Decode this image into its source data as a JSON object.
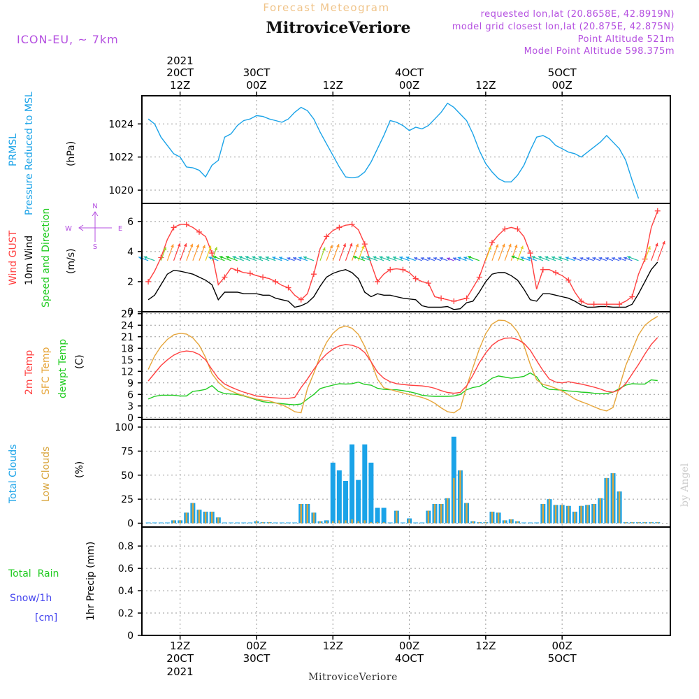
{
  "header": {
    "title_top": "Forecast Meteogram",
    "station": "MitroviceVeriore",
    "model": "ICON-EU, ~ 7km",
    "requested": "requested lon,lat (20.8658E, 42.8919N)",
    "closest": "model grid closest lon,lat (20.875E, 42.875N)",
    "point_alt": "Point Altitude 521m",
    "model_alt": "Model Point Altitude 598.375m",
    "watermark": "by Angel",
    "footer": "MitroviceVeriore"
  },
  "colors": {
    "pressure": "#1aa3e8",
    "gust": "#ff4040",
    "wind": "#000000",
    "temp": "#ff4040",
    "sfc": "#e6a53a",
    "dewpt": "#22cc22",
    "total_clouds": "#1aa3e8",
    "low_clouds": "#d9a640",
    "label_purple": "#b44fe0",
    "rain_green": "#22cc22",
    "snow_blue": "#4444ee"
  },
  "time_axis": {
    "top_year": "2021",
    "top_ticks": [
      {
        "hour": 12,
        "l1": "20CT",
        "l2": "12Z"
      },
      {
        "hour": 24,
        "l1": "30CT",
        "l2": "00Z"
      },
      {
        "hour": 36,
        "l1": "",
        "l2": "12Z"
      },
      {
        "hour": 48,
        "l1": "4OCT",
        "l2": "00Z"
      },
      {
        "hour": 60,
        "l1": "",
        "l2": "12Z"
      },
      {
        "hour": 72,
        "l1": "5OCT",
        "l2": "00Z"
      }
    ],
    "bottom_ticks": [
      {
        "hour": 12,
        "l1": "12Z",
        "l2": "20CT",
        "l3": "2021"
      },
      {
        "hour": 24,
        "l1": "00Z",
        "l2": "30CT",
        "l3": ""
      },
      {
        "hour": 36,
        "l1": "12Z",
        "l2": "",
        "l3": ""
      },
      {
        "hour": 48,
        "l1": "00Z",
        "l2": "4OCT",
        "l3": ""
      },
      {
        "hour": 60,
        "l1": "12Z",
        "l2": "",
        "l3": ""
      },
      {
        "hour": 72,
        "l1": "00Z",
        "l2": "5OCT",
        "l3": ""
      }
    ]
  },
  "panel_labels": {
    "pressure": [
      "PRMSL",
      "Pressure Reduced to MSL"
    ],
    "pressure_unit": "(hPa)",
    "wind": [
      "Wind GUST",
      "10m Wind",
      "Speed and Direction"
    ],
    "wind_unit": "(m/s)",
    "compass": {
      "n": "N",
      "s": "S",
      "w": "W",
      "e": "E"
    },
    "temp": [
      "2m Temp",
      "SFC Temp",
      "dewpt Temp"
    ],
    "temp_unit": "(C)",
    "clouds": [
      "Total Clouds",
      "Low Clouds"
    ],
    "clouds_unit": "(%)",
    "precip": [
      "Total  Rain",
      "Snow/1h",
      "[cm]"
    ],
    "precip_unit": "1hr Precip (mm)"
  },
  "chart_data": [
    {
      "type": "line",
      "panel": "pressure",
      "x_start_hour": 7,
      "x_step_hours": 1,
      "ylim": [
        1019.2,
        1025.7
      ],
      "yticks": [
        "1020",
        "1022",
        "1024"
      ],
      "yticks_values": [
        1020,
        1022,
        1024
      ],
      "series": [
        {
          "name": "PRMSL",
          "values": [
            1024.3,
            1024.0,
            1023.2,
            1022.7,
            1022.2,
            1022.0,
            1021.4,
            1021.35,
            1021.2,
            1020.8,
            1021.5,
            1021.8,
            1023.2,
            1023.4,
            1023.9,
            1024.2,
            1024.3,
            1024.5,
            1024.45,
            1024.3,
            1024.2,
            1024.1,
            1024.3,
            1024.7,
            1025.0,
            1024.8,
            1024.3,
            1023.5,
            1022.8,
            1022.1,
            1021.4,
            1020.8,
            1020.75,
            1020.8,
            1021.1,
            1021.7,
            1022.5,
            1023.3,
            1024.2,
            1024.1,
            1023.9,
            1023.6,
            1023.8,
            1023.7,
            1023.9,
            1024.3,
            1024.7,
            1025.25,
            1025.0,
            1024.6,
            1024.2,
            1023.4,
            1022.4,
            1021.6,
            1021.1,
            1020.7,
            1020.5,
            1020.5,
            1020.9,
            1021.5,
            1022.4,
            1023.2,
            1023.3,
            1023.1,
            1022.7,
            1022.5,
            1022.3,
            1022.2,
            1022.0,
            1022.3,
            1022.6,
            1022.9,
            1023.3,
            1022.9,
            1022.5,
            1021.8,
            1020.6,
            1019.5
          ]
        }
      ]
    },
    {
      "type": "line",
      "panel": "wind",
      "x_start_hour": 7,
      "x_step_hours": 1,
      "ylim": [
        0,
        7.2
      ],
      "yticks": [
        "0",
        "2",
        "4",
        "6"
      ],
      "yticks_values": [
        0,
        2,
        4,
        6
      ],
      "series": [
        {
          "name": "Wind GUST",
          "values": [
            2.0,
            2.7,
            3.6,
            4.8,
            5.6,
            5.8,
            5.8,
            5.6,
            5.3,
            5.0,
            3.9,
            1.8,
            2.3,
            2.9,
            2.75,
            2.6,
            2.55,
            2.4,
            2.3,
            2.2,
            2.0,
            1.75,
            1.6,
            1.1,
            0.8,
            1.2,
            2.5,
            4.2,
            5.0,
            5.4,
            5.6,
            5.75,
            5.8,
            5.45,
            4.5,
            3.2,
            2.0,
            2.5,
            2.8,
            2.85,
            2.8,
            2.6,
            2.2,
            2.0,
            1.9,
            1.0,
            0.9,
            0.8,
            0.7,
            0.8,
            0.9,
            1.6,
            2.3,
            3.5,
            4.6,
            5.1,
            5.5,
            5.6,
            5.5,
            5.0,
            3.9,
            1.5,
            2.8,
            2.8,
            2.6,
            2.4,
            2.1,
            1.3,
            0.7,
            0.5,
            0.5,
            0.5,
            0.5,
            0.5,
            0.5,
            0.7,
            1.0,
            2.5,
            3.5,
            5.6,
            6.7
          ]
        },
        {
          "name": "10m Wind",
          "values": [
            0.8,
            1.1,
            1.8,
            2.5,
            2.75,
            2.7,
            2.6,
            2.5,
            2.3,
            2.1,
            1.8,
            0.8,
            1.3,
            1.3,
            1.3,
            1.2,
            1.2,
            1.2,
            1.1,
            1.1,
            0.9,
            0.8,
            0.7,
            0.3,
            0.4,
            0.6,
            1.0,
            1.7,
            2.3,
            2.55,
            2.7,
            2.8,
            2.6,
            2.2,
            1.3,
            1.0,
            1.2,
            1.1,
            1.1,
            1.0,
            0.9,
            0.85,
            0.8,
            0.4,
            0.3,
            0.3,
            0.3,
            0.35,
            0.15,
            0.2,
            0.6,
            0.7,
            1.3,
            2.0,
            2.5,
            2.6,
            2.6,
            2.4,
            2.1,
            1.5,
            0.8,
            0.7,
            1.2,
            1.2,
            1.1,
            1.0,
            0.9,
            0.7,
            0.45,
            0.3,
            0.3,
            0.35,
            0.35,
            0.3,
            0.3,
            0.3,
            0.5,
            1.2,
            2.0,
            2.8,
            3.3
          ]
        }
      ]
    },
    {
      "type": "line",
      "panel": "temperature",
      "x_start_hour": 7,
      "x_step_hours": 1,
      "ylim": [
        -0.5,
        27.5
      ],
      "yticks": [
        "0",
        "3",
        "6",
        "9",
        "12",
        "15",
        "18",
        "21",
        "24",
        "27"
      ],
      "yticks_values": [
        0,
        3,
        6,
        9,
        12,
        15,
        18,
        21,
        24,
        27
      ],
      "series": [
        {
          "name": "2m Temp",
          "values": [
            9.5,
            11.5,
            13.5,
            15.0,
            16.2,
            17.0,
            17.3,
            17.1,
            16.4,
            15.0,
            12.5,
            10.2,
            8.7,
            7.9,
            7.2,
            6.6,
            6.1,
            5.6,
            5.4,
            5.2,
            5.1,
            5.0,
            5.0,
            5.2,
            7.8,
            10.0,
            12.5,
            14.8,
            16.5,
            17.8,
            18.6,
            19.0,
            18.8,
            18.2,
            16.9,
            14.5,
            11.8,
            10.2,
            9.3,
            8.8,
            8.6,
            8.4,
            8.3,
            8.2,
            8.0,
            7.6,
            7.0,
            6.5,
            6.3,
            6.5,
            8.2,
            11.0,
            14.2,
            16.8,
            18.8,
            20.0,
            20.6,
            20.7,
            20.3,
            19.3,
            17.5,
            14.8,
            12.2,
            10.0,
            9.2,
            9.0,
            9.3,
            9.0,
            8.7,
            8.3,
            7.9,
            7.4,
            6.8,
            6.6,
            7.2,
            8.8,
            11.3,
            13.8,
            16.5,
            19.0,
            20.8
          ]
        },
        {
          "name": "SFC Temp",
          "values": [
            12.5,
            16.0,
            18.5,
            20.3,
            21.5,
            21.9,
            21.7,
            20.7,
            18.8,
            15.6,
            11.4,
            9.2,
            7.7,
            6.9,
            6.2,
            5.7,
            5.2,
            4.8,
            4.5,
            4.3,
            3.8,
            3.3,
            2.5,
            1.5,
            1.2,
            7.5,
            11.5,
            16.0,
            19.5,
            21.9,
            23.3,
            23.8,
            23.2,
            21.6,
            18.5,
            14.5,
            10.0,
            7.7,
            7.3,
            6.8,
            6.4,
            6.0,
            5.6,
            5.2,
            4.6,
            3.7,
            2.5,
            1.5,
            1.2,
            2.3,
            8.0,
            13.0,
            17.8,
            21.8,
            24.3,
            25.3,
            25.2,
            24.3,
            22.3,
            18.8,
            13.8,
            9.8,
            8.6,
            8.2,
            7.6,
            6.9,
            5.9,
            4.8,
            4.1,
            3.5,
            2.8,
            2.1,
            1.7,
            2.6,
            8.0,
            13.5,
            17.5,
            21.5,
            24.0,
            25.3,
            26.3
          ]
        },
        {
          "name": "dewpt Temp",
          "values": [
            4.8,
            5.5,
            5.8,
            5.8,
            5.8,
            5.6,
            5.6,
            6.8,
            7.0,
            7.3,
            8.3,
            6.8,
            6.2,
            6.1,
            6.0,
            5.6,
            5.1,
            4.6,
            4.1,
            3.9,
            3.8,
            3.6,
            3.4,
            3.3,
            3.5,
            4.8,
            6.0,
            7.5,
            8.0,
            8.4,
            8.8,
            8.7,
            8.8,
            9.2,
            8.6,
            8.4,
            7.6,
            7.3,
            7.2,
            7.2,
            7.0,
            6.7,
            6.3,
            5.8,
            5.6,
            5.5,
            5.5,
            5.5,
            5.6,
            6.0,
            7.2,
            7.8,
            8.1,
            9.0,
            10.2,
            10.8,
            10.5,
            10.2,
            10.4,
            10.7,
            11.6,
            10.6,
            8.1,
            7.3,
            7.2,
            7.1,
            6.9,
            6.8,
            6.6,
            6.5,
            6.3,
            6.2,
            6.2,
            6.6,
            7.5,
            8.4,
            8.8,
            8.7,
            8.7,
            9.8,
            9.6
          ]
        }
      ]
    },
    {
      "type": "bar",
      "panel": "clouds",
      "x_start_hour": 7,
      "x_step_hours": 1,
      "ylim": [
        -4,
        108
      ],
      "yticks": [
        "0",
        "25",
        "50",
        "75",
        "100"
      ],
      "yticks_values": [
        0,
        25,
        50,
        75,
        100
      ],
      "series": [
        {
          "name": "Total Clouds",
          "values": [
            0,
            0,
            0,
            0,
            3,
            3,
            11,
            21,
            14,
            12,
            12,
            6,
            0,
            0,
            0,
            0,
            0,
            2,
            1,
            1,
            0,
            0,
            0,
            0,
            20,
            20,
            11,
            2,
            3,
            63,
            55,
            44,
            82,
            45,
            82,
            63,
            16,
            16,
            0,
            13,
            0,
            5,
            0,
            0,
            13,
            20,
            20,
            26,
            90,
            55,
            21,
            2,
            1,
            1,
            12,
            11,
            3,
            4,
            2,
            0,
            0,
            0,
            20,
            25,
            19,
            19,
            18,
            12,
            18,
            19,
            20,
            26,
            47,
            52,
            33,
            1,
            1,
            1,
            1,
            1,
            1
          ]
        },
        {
          "name": "Low Clouds",
          "values": [
            0,
            0,
            0,
            0,
            3,
            3,
            11,
            21,
            14,
            12,
            12,
            6,
            0,
            0,
            0,
            0,
            0,
            2,
            1,
            1,
            0,
            0,
            0,
            0,
            20,
            20,
            11,
            2,
            2,
            2,
            3,
            3,
            4,
            2,
            3,
            1,
            1,
            1,
            0,
            13,
            0,
            4,
            0,
            0,
            13,
            20,
            20,
            26,
            47,
            55,
            21,
            2,
            1,
            1,
            12,
            11,
            3,
            4,
            2,
            0,
            0,
            0,
            20,
            25,
            19,
            19,
            18,
            12,
            18,
            19,
            20,
            26,
            47,
            52,
            33,
            1,
            1,
            1,
            1,
            1,
            1
          ]
        }
      ]
    },
    {
      "type": "bar",
      "panel": "precipitation",
      "ylim": [
        0,
        0.97
      ],
      "yticks": [
        "0",
        "0.2",
        "0.4",
        "0.6",
        "0.8"
      ],
      "yticks_values": [
        0,
        0.2,
        0.4,
        0.6,
        0.8
      ],
      "series": []
    }
  ]
}
